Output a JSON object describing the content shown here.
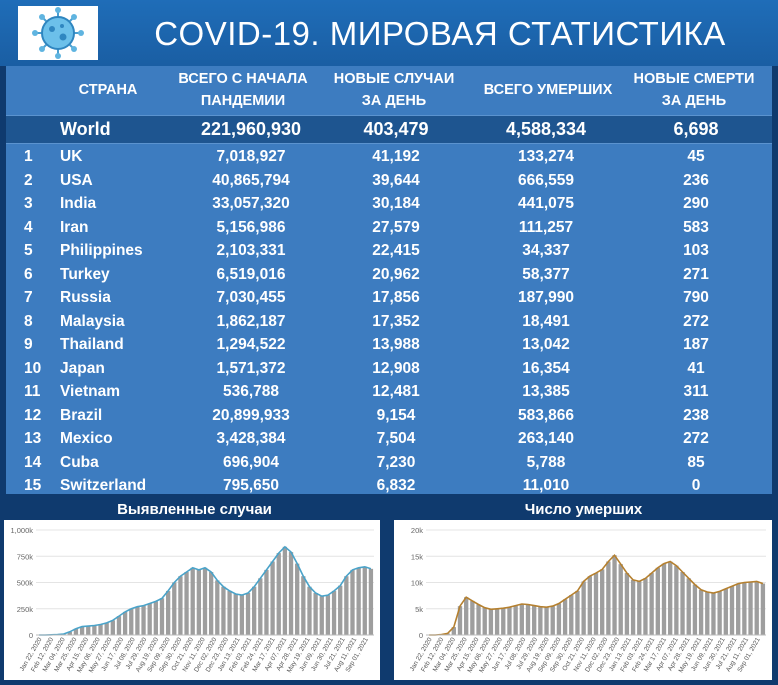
{
  "title": "COVID-19. МИРОВАЯ СТАТИСТИКА",
  "headers": {
    "country": "СТРАНА",
    "total": "ВСЕГО С НАЧАЛА ПАНДЕМИИ",
    "new_cases": "НОВЫЕ СЛУЧАИ ЗА ДЕНЬ",
    "deaths": "ВСЕГО УМЕРШИХ",
    "new_deaths": "НОВЫЕ СМЕРТИ ЗА ДЕНЬ"
  },
  "world": {
    "name": "World",
    "total": "221,960,930",
    "new_cases": "403,479",
    "deaths": "4,588,334",
    "new_deaths": "6,698"
  },
  "rows": [
    {
      "rank": "1",
      "country": "UK",
      "total": "7,018,927",
      "new_cases": "41,192",
      "deaths": "133,274",
      "new_deaths": "45"
    },
    {
      "rank": "2",
      "country": "USA",
      "total": "40,865,794",
      "new_cases": "39,644",
      "deaths": "666,559",
      "new_deaths": "236"
    },
    {
      "rank": "3",
      "country": "India",
      "total": "33,057,320",
      "new_cases": "30,184",
      "deaths": "441,075",
      "new_deaths": "290"
    },
    {
      "rank": "4",
      "country": "Iran",
      "total": "5,156,986",
      "new_cases": "27,579",
      "deaths": "111,257",
      "new_deaths": "583"
    },
    {
      "rank": "5",
      "country": "Philippines",
      "total": "2,103,331",
      "new_cases": "22,415",
      "deaths": "34,337",
      "new_deaths": "103"
    },
    {
      "rank": "6",
      "country": "Turkey",
      "total": "6,519,016",
      "new_cases": "20,962",
      "deaths": "58,377",
      "new_deaths": "271"
    },
    {
      "rank": "7",
      "country": "Russia",
      "total": "7,030,455",
      "new_cases": "17,856",
      "deaths": "187,990",
      "new_deaths": "790"
    },
    {
      "rank": "8",
      "country": "Malaysia",
      "total": "1,862,187",
      "new_cases": "17,352",
      "deaths": "18,491",
      "new_deaths": "272"
    },
    {
      "rank": "9",
      "country": "Thailand",
      "total": "1,294,522",
      "new_cases": "13,988",
      "deaths": "13,042",
      "new_deaths": "187"
    },
    {
      "rank": "10",
      "country": "Japan",
      "total": "1,571,372",
      "new_cases": "12,908",
      "deaths": "16,354",
      "new_deaths": "41"
    },
    {
      "rank": "11",
      "country": "Vietnam",
      "total": "536,788",
      "new_cases": "12,481",
      "deaths": "13,385",
      "new_deaths": "311"
    },
    {
      "rank": "12",
      "country": "Brazil",
      "total": "20,899,933",
      "new_cases": "9,154",
      "deaths": "583,866",
      "new_deaths": "238"
    },
    {
      "rank": "13",
      "country": "Mexico",
      "total": "3,428,384",
      "new_cases": "7,504",
      "deaths": "263,140",
      "new_deaths": "272"
    },
    {
      "rank": "14",
      "country": "Cuba",
      "total": "696,904",
      "new_cases": "7,230",
      "deaths": "5,788",
      "new_deaths": "85"
    },
    {
      "rank": "15",
      "country": "Switzerland",
      "total": "795,650",
      "new_cases": "6,832",
      "deaths": "11,010",
      "new_deaths": "0"
    }
  ],
  "chart_data": [
    {
      "type": "bar",
      "title": "Выявленные случаи",
      "ylim": [
        0,
        1000000
      ],
      "y_ticks": [
        0,
        250000,
        500000,
        750000,
        1000000
      ],
      "y_tick_labels": [
        "0",
        "250k",
        "500k",
        "750k",
        "1,000k"
      ],
      "x_tick_labels": [
        "Jan 22, 2020",
        "Feb 12, 2020",
        "Mar 04, 2020",
        "Mar 25, 2020",
        "Apr 15, 2020",
        "May 06, 2020",
        "May 27, 2020",
        "Jun 17, 2020",
        "Jul 08, 2020",
        "Jul 29, 2020",
        "Aug 19, 2020",
        "Sep 09, 2020",
        "Sep 30, 2020",
        "Oct 21, 2020",
        "Nov 11, 2020",
        "Dec 02, 2020",
        "Dec 23, 2020",
        "Jan 13, 2021",
        "Feb 03, 2021",
        "Feb 24, 2021",
        "Mar 17, 2021",
        "Apr 07, 2021",
        "Apr 28, 2021",
        "May 19, 2021",
        "Jun 09, 2021",
        "Jun 30, 2021",
        "Jul 21, 2021",
        "Aug 11, 2021",
        "Sep 01, 2021"
      ],
      "series": [
        {
          "kind": "bars",
          "color": "#9e9e9e",
          "values": [
            0,
            0,
            2000,
            5000,
            10000,
            30000,
            60000,
            80000,
            85000,
            90000,
            100000,
            115000,
            140000,
            180000,
            220000,
            250000,
            270000,
            280000,
            300000,
            320000,
            350000,
            420000,
            500000,
            560000,
            600000,
            640000,
            620000,
            640000,
            600000,
            520000,
            460000,
            420000,
            390000,
            380000,
            400000,
            460000,
            540000,
            620000,
            700000,
            780000,
            840000,
            790000,
            680000,
            560000,
            460000,
            400000,
            370000,
            380000,
            420000,
            470000,
            560000,
            620000,
            640000,
            650000,
            630000
          ]
        },
        {
          "kind": "line",
          "color": "#4aa3c9",
          "values": [
            0,
            0,
            2000,
            5000,
            10000,
            30000,
            60000,
            80000,
            85000,
            90000,
            100000,
            115000,
            140000,
            180000,
            220000,
            250000,
            270000,
            280000,
            300000,
            320000,
            350000,
            420000,
            500000,
            560000,
            600000,
            640000,
            620000,
            640000,
            600000,
            520000,
            460000,
            420000,
            390000,
            380000,
            400000,
            460000,
            540000,
            620000,
            700000,
            780000,
            840000,
            790000,
            680000,
            560000,
            460000,
            400000,
            370000,
            380000,
            420000,
            470000,
            560000,
            620000,
            640000,
            650000,
            630000
          ]
        }
      ]
    },
    {
      "type": "bar",
      "title": "Число умерших",
      "ylim": [
        0,
        20000
      ],
      "y_ticks": [
        0,
        5000,
        10000,
        15000,
        20000
      ],
      "y_tick_labels": [
        "0",
        "5k",
        "10k",
        "15k",
        "20k"
      ],
      "x_tick_labels": [
        "Jan 22, 2020",
        "Feb 12, 2020",
        "Mar 04, 2020",
        "Mar 25, 2020",
        "Apr 15, 2020",
        "May 06, 2020",
        "May 27, 2020",
        "Jun 17, 2020",
        "Jul 08, 2020",
        "Jul 29, 2020",
        "Aug 19, 2020",
        "Sep 09, 2020",
        "Sep 30, 2020",
        "Oct 21, 2020",
        "Nov 11, 2020",
        "Dec 02, 2020",
        "Dec 23, 2020",
        "Jan 13, 2021",
        "Feb 03, 2021",
        "Feb 24, 2021",
        "Mar 17, 2021",
        "Apr 07, 2021",
        "Apr 28, 2021",
        "May 19, 2021",
        "Jun 09, 2021",
        "Jun 30, 2021",
        "Jul 21, 2021",
        "Aug 11, 2021",
        "Sep 01, 2021"
      ],
      "series": [
        {
          "kind": "bars",
          "color": "#9e9e9e",
          "values": [
            0,
            0,
            100,
            300,
            1500,
            5500,
            7200,
            6500,
            5800,
            5200,
            4900,
            5000,
            5100,
            5300,
            5600,
            5900,
            5800,
            5600,
            5400,
            5300,
            5500,
            6000,
            6800,
            7600,
            8400,
            10200,
            11200,
            11800,
            12500,
            14000,
            15200,
            13500,
            11800,
            10500,
            10200,
            10800,
            11800,
            12800,
            13600,
            14000,
            13200,
            12000,
            10800,
            9600,
            8600,
            8200,
            8000,
            8300,
            8800,
            9300,
            9800,
            10000,
            10100,
            10200,
            9800
          ]
        },
        {
          "kind": "line",
          "color": "#b5802f",
          "values": [
            0,
            0,
            100,
            300,
            1500,
            5500,
            7200,
            6500,
            5800,
            5200,
            4900,
            5000,
            5100,
            5300,
            5600,
            5900,
            5800,
            5600,
            5400,
            5300,
            5500,
            6000,
            6800,
            7600,
            8400,
            10200,
            11200,
            11800,
            12500,
            14000,
            15200,
            13500,
            11800,
            10500,
            10200,
            10800,
            11800,
            12800,
            13600,
            14000,
            13200,
            12000,
            10800,
            9600,
            8600,
            8200,
            8000,
            8300,
            8800,
            9300,
            9800,
            10000,
            10100,
            10200,
            9800
          ]
        }
      ]
    }
  ]
}
